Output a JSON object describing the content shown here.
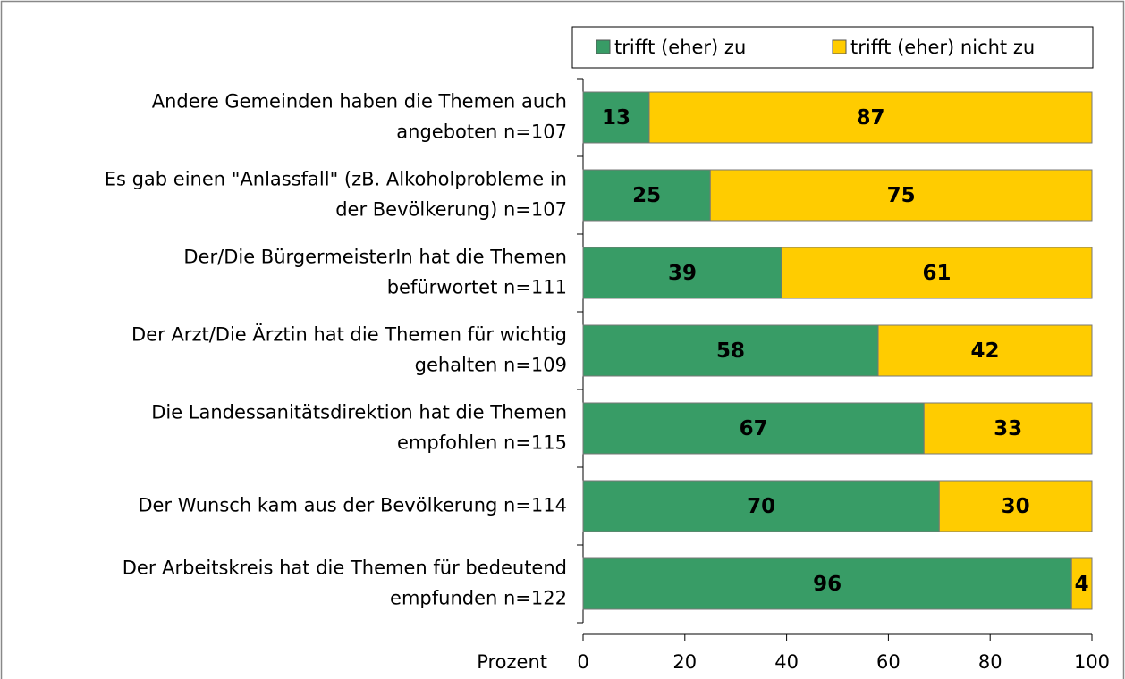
{
  "chart_data": {
    "type": "stacked_bar_horizontal",
    "categories": [
      [
        "Andere Gemeinden haben die Themen auch",
        "angeboten n=107"
      ],
      [
        "Es gab einen \"Anlassfall\" (zB. Alkoholprobleme in",
        "der Bevölkerung) n=107"
      ],
      [
        "Der/Die BürgermeisterIn hat die Themen",
        "befürwortet n=111"
      ],
      [
        "Der Arzt/Die Ärztin hat die Themen für wichtig",
        "gehalten n=109"
      ],
      [
        "Die Landessanitätsdirektion hat die Themen",
        "empfohlen n=115"
      ],
      [
        "Der Wunsch kam aus der Bevölkerung n=114"
      ],
      [
        "Der Arbeitskreis hat die Themen für bedeutend",
        "empfunden n=122"
      ]
    ],
    "series": [
      {
        "name": "trifft (eher) zu",
        "color": "#389c66",
        "label_color": "#ffffff",
        "values": [
          13,
          25,
          39,
          58,
          67,
          70,
          96
        ]
      },
      {
        "name": "trifft (eher) nicht zu",
        "color": "#ffcc00",
        "label_color": "#000000",
        "values": [
          87,
          75,
          61,
          42,
          33,
          30,
          4
        ]
      }
    ],
    "xlabel": "Prozent",
    "xlim": [
      0,
      100
    ],
    "xticks": [
      0,
      20,
      40,
      60,
      80,
      100
    ],
    "legend": "top"
  }
}
